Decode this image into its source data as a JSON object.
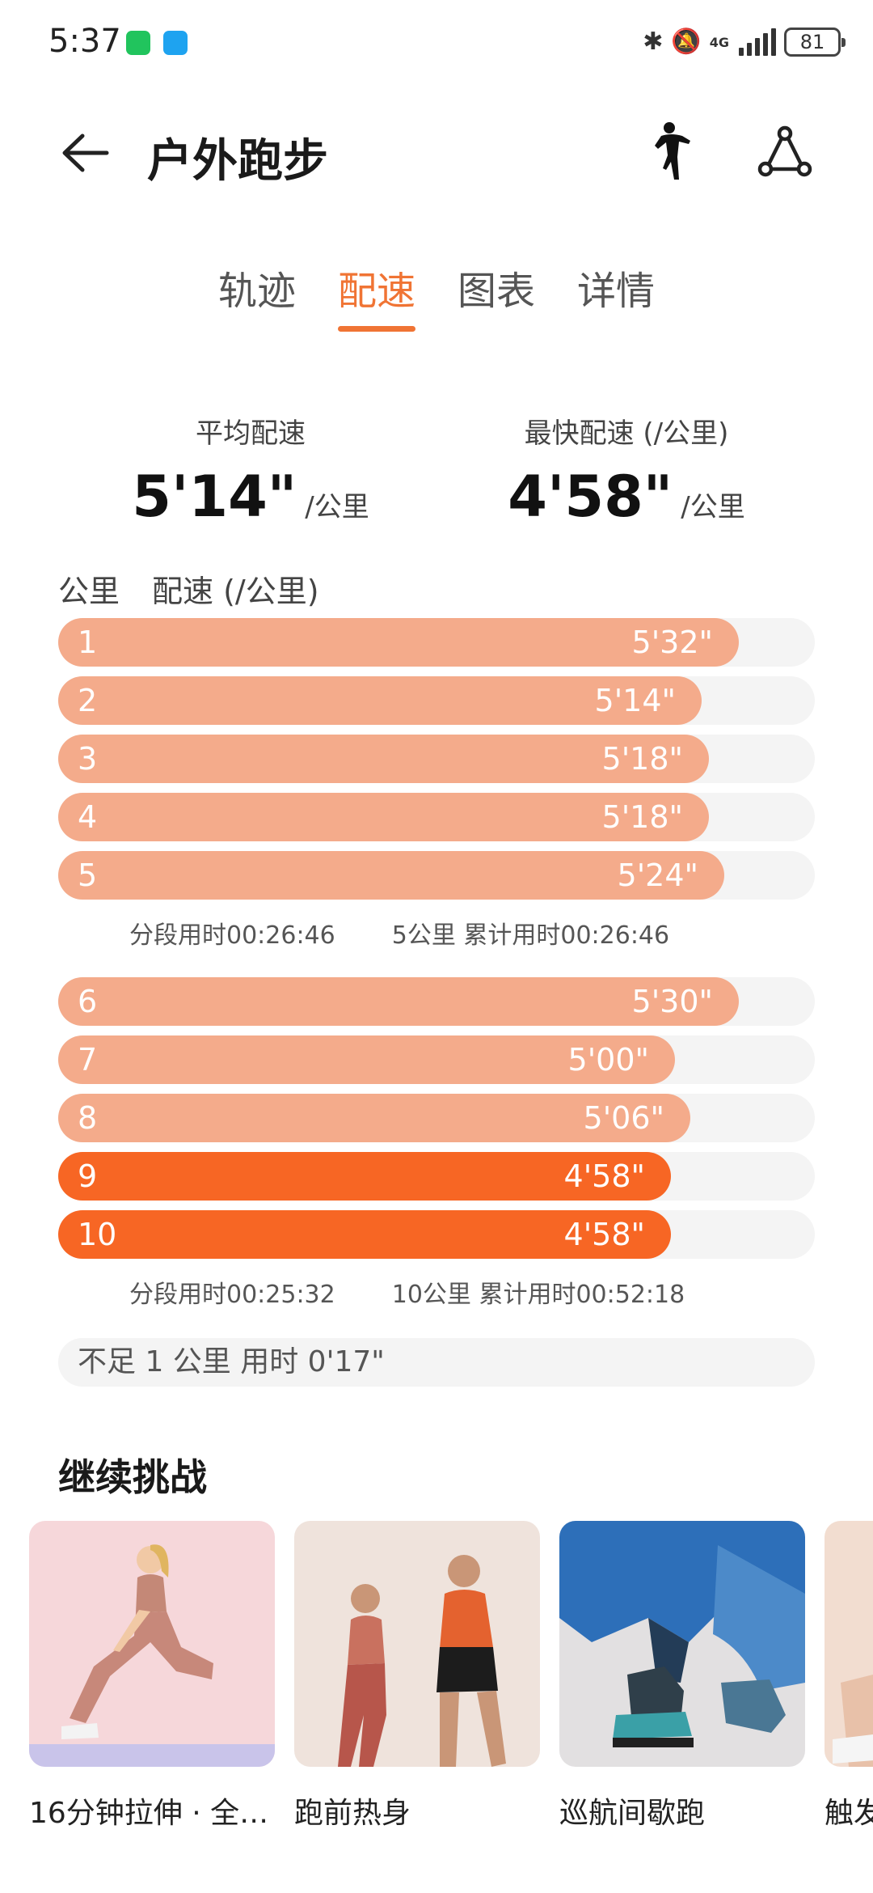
{
  "status": {
    "time": "5:37",
    "network": "4G",
    "battery": "81"
  },
  "header": {
    "title": "户外跑步"
  },
  "tabs": [
    {
      "label": "轨迹",
      "active": false
    },
    {
      "label": "配速",
      "active": true
    },
    {
      "label": "图表",
      "active": false
    },
    {
      "label": "详情",
      "active": false
    }
  ],
  "summary": {
    "avg_label": "平均配速",
    "avg_value": "5'14\"",
    "avg_unit": "/公里",
    "best_label": "最快配速 (/公里)",
    "best_value": "4'58\"",
    "best_unit": "/公里"
  },
  "table": {
    "col_km": "公里",
    "col_pace": "配速 (/公里)"
  },
  "splits": [
    {
      "km": "1",
      "pace": "5'32\"",
      "fill": 0.9,
      "fastest": false
    },
    {
      "km": "2",
      "pace": "5'14\"",
      "fill": 0.85,
      "fastest": false
    },
    {
      "km": "3",
      "pace": "5'18\"",
      "fill": 0.86,
      "fastest": false
    },
    {
      "km": "4",
      "pace": "5'18\"",
      "fill": 0.86,
      "fastest": false
    },
    {
      "km": "5",
      "pace": "5'24\"",
      "fill": 0.88,
      "fastest": false
    },
    {
      "km": "6",
      "pace": "5'30\"",
      "fill": 0.9,
      "fastest": false
    },
    {
      "km": "7",
      "pace": "5'00\"",
      "fill": 0.815,
      "fastest": false
    },
    {
      "km": "8",
      "pace": "5'06\"",
      "fill": 0.835,
      "fastest": false
    },
    {
      "km": "9",
      "pace": "4'58\"",
      "fill": 0.81,
      "fastest": true
    },
    {
      "km": "10",
      "pace": "4'58\"",
      "fill": 0.81,
      "fastest": true
    }
  ],
  "segments": [
    {
      "split_time": "分段用时00:26:46",
      "cumulative": "5公里 累计用时00:26:46"
    },
    {
      "split_time": "分段用时00:25:32",
      "cumulative": "10公里 累计用时00:52:18"
    }
  ],
  "remainder": "不足 1 公里 用时 0'17\"",
  "challenge": {
    "title": "继续挑战",
    "cards": [
      {
        "title": "16分钟拉伸 · 全…"
      },
      {
        "title": "跑前热身"
      },
      {
        "title": "巡航间歇跑"
      },
      {
        "title": "触发"
      }
    ]
  },
  "colors": {
    "accent": "#f07434",
    "bar_normal": "#f4ab8b",
    "bar_fastest": "#f76624",
    "track": "#f4f4f4"
  }
}
